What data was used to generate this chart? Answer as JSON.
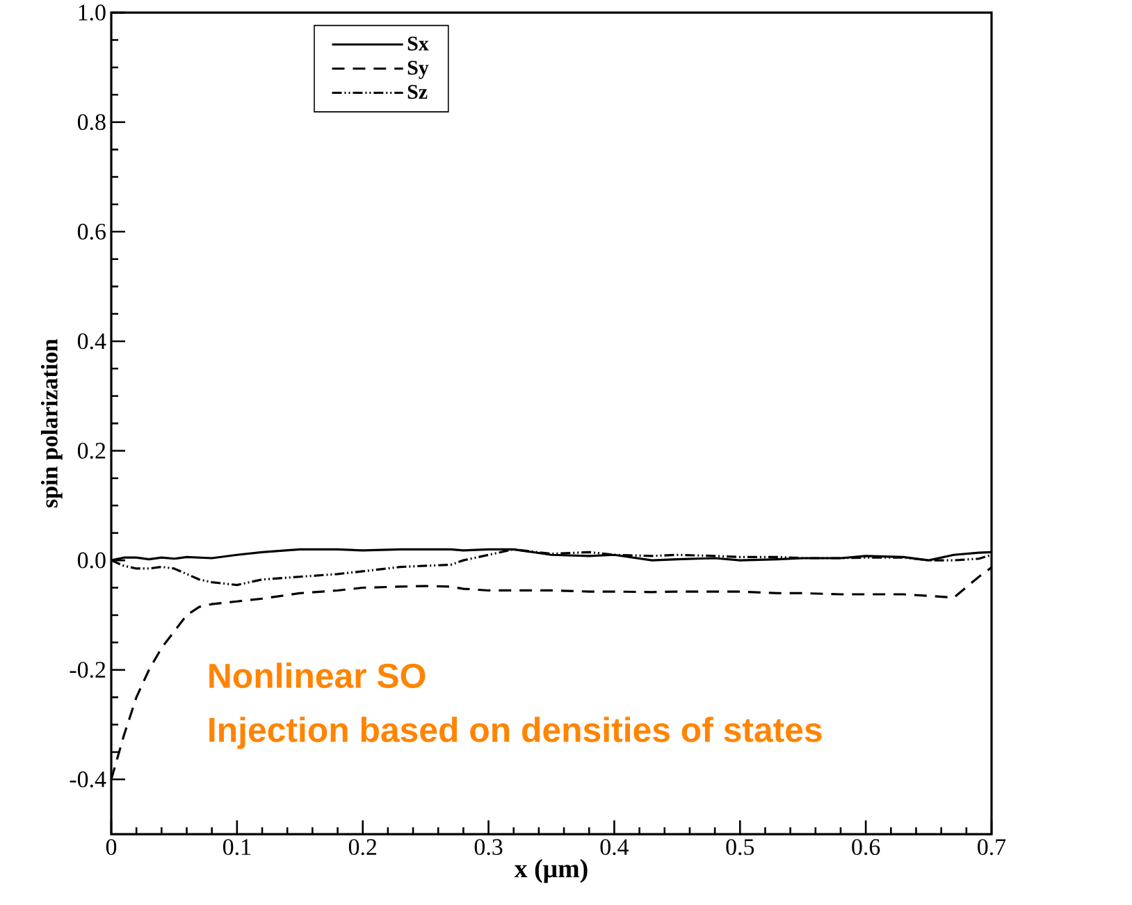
{
  "chart_data": {
    "type": "line",
    "xlabel": "x (μm)",
    "ylabel": "spin polarization",
    "x": [
      0,
      0.01,
      0.02,
      0.03,
      0.04,
      0.05,
      0.06,
      0.07,
      0.08,
      0.1,
      0.12,
      0.15,
      0.18,
      0.2,
      0.23,
      0.25,
      0.27,
      0.28,
      0.3,
      0.32,
      0.35,
      0.38,
      0.4,
      0.43,
      0.45,
      0.48,
      0.5,
      0.53,
      0.55,
      0.58,
      0.6,
      0.63,
      0.65,
      0.67,
      0.69,
      0.7
    ],
    "series": [
      {
        "name": "Sx",
        "color": "#000000",
        "line_style": "solid",
        "values": [
          0.0,
          0.005,
          0.005,
          0.002,
          0.005,
          0.003,
          0.006,
          0.005,
          0.004,
          0.01,
          0.015,
          0.02,
          0.02,
          0.018,
          0.02,
          0.02,
          0.02,
          0.018,
          0.02,
          0.02,
          0.01,
          0.008,
          0.01,
          0.0,
          0.002,
          0.004,
          0.0,
          0.002,
          0.004,
          0.004,
          0.008,
          0.006,
          0.0,
          0.01,
          0.014,
          0.015
        ]
      },
      {
        "name": "Sy",
        "color": "#000000",
        "line_style": "dashed",
        "values": [
          -0.4,
          -0.32,
          -0.25,
          -0.2,
          -0.16,
          -0.13,
          -0.1,
          -0.085,
          -0.08,
          -0.075,
          -0.07,
          -0.06,
          -0.055,
          -0.05,
          -0.048,
          -0.047,
          -0.048,
          -0.052,
          -0.055,
          -0.055,
          -0.055,
          -0.057,
          -0.057,
          -0.058,
          -0.057,
          -0.057,
          -0.057,
          -0.06,
          -0.06,
          -0.062,
          -0.062,
          -0.062,
          -0.065,
          -0.068,
          -0.03,
          -0.013
        ]
      },
      {
        "name": "Sz",
        "color": "#000000",
        "line_style": "dashdotdotted",
        "values": [
          0.0,
          -0.01,
          -0.015,
          -0.015,
          -0.012,
          -0.015,
          -0.025,
          -0.035,
          -0.04,
          -0.045,
          -0.035,
          -0.03,
          -0.025,
          -0.02,
          -0.012,
          -0.01,
          -0.008,
          0.0,
          0.01,
          0.02,
          0.012,
          0.015,
          0.01,
          0.008,
          0.01,
          0.008,
          0.006,
          0.006,
          0.004,
          0.004,
          0.005,
          0.005,
          0.0,
          0.0,
          0.003,
          0.01
        ]
      }
    ],
    "xlim": [
      0,
      0.7
    ],
    "ylim": [
      -0.5,
      1.0
    ],
    "xticks": [
      0,
      0.1,
      0.2,
      0.3,
      0.4,
      0.5,
      0.6,
      0.7
    ],
    "yticks": [
      {
        "value": -0.4,
        "label": "-0.4"
      },
      {
        "value": -0.2,
        "label": "-0.2"
      },
      {
        "value": 0,
        "label": "0.0"
      },
      {
        "value": 0.2,
        "label": "0.2"
      },
      {
        "value": 0.4,
        "label": "0.4"
      },
      {
        "value": 0.6,
        "label": "0.6"
      },
      {
        "value": 0.8,
        "label": "0.8"
      },
      {
        "value": 1.0,
        "label": "1.0"
      }
    ],
    "legend": "top left",
    "annotations": [
      "Nonlinear SO",
      "Injection based on densities of states"
    ]
  }
}
